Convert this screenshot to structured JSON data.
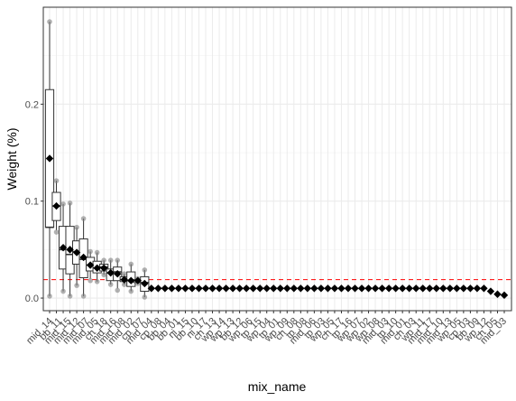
{
  "chart_data": {
    "type": "boxplot",
    "xlabel": "mix_name",
    "ylabel": "Weight (%)",
    "y_ticks": [
      0.0,
      0.1,
      0.2
    ],
    "y_tick_labels": [
      "0.0",
      "0.1",
      "0.2"
    ],
    "ylim": [
      -0.013,
      0.3
    ],
    "reference_line": {
      "y": 0.019,
      "color": "#ff0000",
      "style": "dashed"
    },
    "grid": true,
    "x_tick_labels_displayed": [
      "mid_14",
      "bb_11",
      "mid_15",
      "mid_12",
      "mid_07",
      "mid_05",
      "ch_18",
      "mid_16",
      "mid_08",
      "mid_02",
      "cp_07",
      "mid_04",
      "cp_08",
      "bb_04",
      "bb_01",
      "ni_15",
      "bb_10",
      "ni_17",
      "ch_13",
      "wp_14",
      "wp_13",
      "bb_12",
      "wp_06",
      "tp_15",
      "wp_04",
      "tp_01",
      "wp_09",
      "ch_08",
      "tp_08",
      "mid_06",
      "tp_03",
      "wp_05",
      "ch_17",
      "tp_16",
      "wp_07",
      "wp_02",
      "wp_08",
      "mid_03",
      "tp_10",
      "mid_01",
      "ch_03",
      "wp_11",
      "mid_17",
      "mid_10",
      "mid_13",
      "wp_05",
      "cp_03",
      "bb_09",
      "wp_12",
      "ch_05",
      "mid_03"
    ],
    "colors": {
      "box_fill": "#ffffff",
      "mean_marker": "#000000",
      "points": "#7f7f7f",
      "ref_line": "#ff0000",
      "grid": "#ebebeb"
    },
    "series": [
      {
        "name": "mean",
        "values": [
          0.144,
          0.095,
          0.052,
          0.05,
          0.047,
          0.042,
          0.034,
          0.031,
          0.031,
          0.026,
          0.025,
          0.019,
          0.018,
          0.018,
          0.015,
          0.01,
          0.01,
          0.01,
          0.01,
          0.01,
          0.01,
          0.01,
          0.01,
          0.01,
          0.01,
          0.01,
          0.01,
          0.01,
          0.01,
          0.01,
          0.01,
          0.01,
          0.01,
          0.01,
          0.01,
          0.01,
          0.01,
          0.01,
          0.01,
          0.01,
          0.01,
          0.01,
          0.01,
          0.01,
          0.01,
          0.01,
          0.01,
          0.01,
          0.01,
          0.01,
          0.01,
          0.01,
          0.01,
          0.01,
          0.01,
          0.01,
          0.01,
          0.01,
          0.01,
          0.01,
          0.01,
          0.01,
          0.01,
          0.01,
          0.01,
          0.007,
          0.004,
          0.003
        ]
      }
    ],
    "boxes": [
      {
        "index": 0,
        "whisker_low": 0.002,
        "q1": 0.073,
        "median": 0.073,
        "q3": 0.215,
        "whisker_high": 0.285,
        "points": [
          0.002,
          0.285
        ]
      },
      {
        "index": 1,
        "whisker_low": 0.07,
        "q1": 0.08,
        "median": 0.095,
        "q3": 0.109,
        "whisker_high": 0.121,
        "points": [
          0.068,
          0.121
        ]
      },
      {
        "index": 2,
        "whisker_low": 0.007,
        "q1": 0.03,
        "median": 0.05,
        "q3": 0.074,
        "whisker_high": 0.097,
        "points": [
          0.007,
          0.097
        ]
      },
      {
        "index": 3,
        "whisker_low": 0.002,
        "q1": 0.025,
        "median": 0.045,
        "q3": 0.074,
        "whisker_high": 0.098,
        "points": [
          0.002,
          0.098
        ]
      },
      {
        "index": 4,
        "whisker_low": 0.013,
        "q1": 0.035,
        "median": 0.048,
        "q3": 0.059,
        "whisker_high": 0.073,
        "points": [
          0.013,
          0.073
        ]
      },
      {
        "index": 5,
        "whisker_low": 0.002,
        "q1": 0.021,
        "median": 0.04,
        "q3": 0.061,
        "whisker_high": 0.082,
        "points": [
          0.002,
          0.082
        ]
      },
      {
        "index": 6,
        "whisker_low": 0.02,
        "q1": 0.028,
        "median": 0.034,
        "q3": 0.042,
        "whisker_high": 0.048,
        "points": [
          0.018,
          0.048
        ]
      },
      {
        "index": 7,
        "whisker_low": 0.017,
        "q1": 0.026,
        "median": 0.031,
        "q3": 0.038,
        "whisker_high": 0.047,
        "points": [
          0.017,
          0.047
        ]
      },
      {
        "index": 8,
        "whisker_low": 0.024,
        "q1": 0.028,
        "median": 0.032,
        "q3": 0.035,
        "whisker_high": 0.039,
        "points": [
          0.024,
          0.039
        ]
      },
      {
        "index": 9,
        "whisker_low": 0.014,
        "q1": 0.018,
        "median": 0.026,
        "q3": 0.03,
        "whisker_high": 0.039,
        "points": [
          0.014,
          0.039
        ]
      },
      {
        "index": 10,
        "whisker_low": 0.01,
        "q1": 0.018,
        "median": 0.027,
        "q3": 0.032,
        "whisker_high": 0.039,
        "points": [
          0.008,
          0.039
        ]
      },
      {
        "index": 11,
        "whisker_low": 0.014,
        "q1": 0.017,
        "median": 0.019,
        "q3": 0.022,
        "whisker_high": 0.025,
        "points": [
          0.014,
          0.025
        ]
      },
      {
        "index": 12,
        "whisker_low": 0.007,
        "q1": 0.012,
        "median": 0.018,
        "q3": 0.027,
        "whisker_high": 0.035,
        "points": [
          0.007,
          0.035
        ]
      },
      {
        "index": 13,
        "whisker_low": 0.015,
        "q1": 0.016,
        "median": 0.018,
        "q3": 0.019,
        "whisker_high": 0.02,
        "points": [
          0.015,
          0.02
        ]
      },
      {
        "index": 14,
        "whisker_low": 0.001,
        "q1": 0.007,
        "median": 0.016,
        "q3": 0.022,
        "whisker_high": 0.029,
        "points": [
          0.001,
          0.029
        ]
      }
    ]
  }
}
